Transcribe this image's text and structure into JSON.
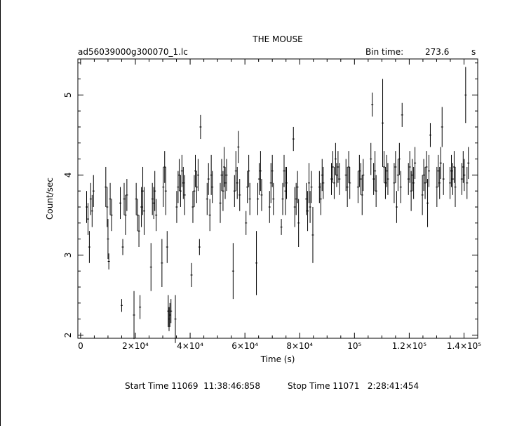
{
  "chart_data": {
    "type": "scatter",
    "title": "THE MOUSE",
    "file_label": "ad56039000g300070_1.lc",
    "bin_time_label": "Bin time:",
    "bin_time_value": "273.6",
    "bin_time_unit": "s",
    "xlabel": "Time (s)",
    "ylabel": "Count/sec",
    "xlim": [
      -1000,
      145000
    ],
    "ylim": [
      1.96,
      5.45
    ],
    "x_ticks": [
      {
        "value": 0,
        "label": "0"
      },
      {
        "value": 20000,
        "label": "2×10⁴"
      },
      {
        "value": 40000,
        "label": "4×10⁴"
      },
      {
        "value": 60000,
        "label": "6×10⁴"
      },
      {
        "value": 80000,
        "label": "8×10⁴"
      },
      {
        "value": 100000,
        "label": "10⁵"
      },
      {
        "value": 120000,
        "label": "1.2×10⁵"
      },
      {
        "value": 140000,
        "label": "1.4×10⁵"
      }
    ],
    "y_ticks": [
      {
        "value": 2,
        "label": "2"
      },
      {
        "value": 3,
        "label": "3"
      },
      {
        "value": 4,
        "label": "4"
      },
      {
        "value": 5,
        "label": "5"
      }
    ],
    "series": [
      {
        "points": [
          [
            2200,
            3.6,
            0.2
          ],
          [
            2700,
            3.45,
            0.2
          ],
          [
            3200,
            3.1,
            0.2
          ],
          [
            3700,
            3.7,
            0.2
          ],
          [
            4200,
            3.55,
            0.2
          ],
          [
            4700,
            3.8,
            0.2
          ],
          [
            9200,
            3.85,
            0.25
          ],
          [
            9700,
            3.6,
            0.25
          ],
          [
            10000,
            3.2,
            0.25
          ],
          [
            10300,
            2.92,
            0.1
          ],
          [
            10800,
            3.7,
            0.2
          ],
          [
            11300,
            3.5,
            0.2
          ],
          [
            14500,
            3.65,
            0.2
          ],
          [
            15000,
            2.37,
            0.08
          ],
          [
            15400,
            3.1,
            0.1
          ],
          [
            15900,
            3.7,
            0.2
          ],
          [
            16400,
            3.5,
            0.25
          ],
          [
            16900,
            3.75,
            0.2
          ],
          [
            19500,
            2.25,
            0.3
          ],
          [
            20300,
            3.7,
            0.2
          ],
          [
            20800,
            3.5,
            0.2
          ],
          [
            21300,
            3.3,
            0.2
          ],
          [
            21700,
            2.35,
            0.15
          ],
          [
            22200,
            3.6,
            0.25
          ],
          [
            22700,
            3.8,
            0.3
          ],
          [
            23200,
            3.55,
            0.3
          ],
          [
            25700,
            2.85,
            0.3
          ],
          [
            26200,
            3.7,
            0.2
          ],
          [
            26700,
            3.65,
            0.2
          ],
          [
            27100,
            3.8,
            0.25
          ],
          [
            27600,
            3.5,
            0.2
          ],
          [
            29700,
            2.9,
            0.3
          ],
          [
            30200,
            3.85,
            0.25
          ],
          [
            30700,
            4.1,
            0.2
          ],
          [
            31100,
            3.8,
            0.3
          ],
          [
            31600,
            3.1,
            0.2
          ],
          [
            32000,
            2.3,
            0.2
          ],
          [
            32300,
            2.2,
            0.15
          ],
          [
            32600,
            2.25,
            0.15
          ],
          [
            33000,
            2.3,
            0.15
          ],
          [
            34600,
            2.2,
            0.3
          ],
          [
            35100,
            3.6,
            0.2
          ],
          [
            35600,
            3.85,
            0.2
          ],
          [
            36000,
            4.0,
            0.2
          ],
          [
            36500,
            3.8,
            0.2
          ],
          [
            37000,
            4.05,
            0.2
          ],
          [
            37500,
            3.9,
            0.2
          ],
          [
            38000,
            3.75,
            0.25
          ],
          [
            40500,
            2.75,
            0.15
          ],
          [
            41000,
            3.6,
            0.2
          ],
          [
            41500,
            3.8,
            0.2
          ],
          [
            41900,
            4.05,
            0.2
          ],
          [
            42400,
            3.85,
            0.2
          ],
          [
            42900,
            4.0,
            0.2
          ],
          [
            43400,
            3.1,
            0.1
          ],
          [
            43800,
            4.6,
            0.15
          ],
          [
            46200,
            3.7,
            0.2
          ],
          [
            46700,
            3.95,
            0.2
          ],
          [
            47200,
            3.5,
            0.2
          ],
          [
            47700,
            4.0,
            0.25
          ],
          [
            48100,
            3.85,
            0.2
          ],
          [
            51000,
            3.65,
            0.25
          ],
          [
            51500,
            4.0,
            0.2
          ],
          [
            52000,
            3.8,
            0.25
          ],
          [
            52400,
            4.1,
            0.25
          ],
          [
            52800,
            3.9,
            0.2
          ],
          [
            53300,
            4.0,
            0.2
          ],
          [
            55700,
            2.8,
            0.35
          ],
          [
            56200,
            3.8,
            0.2
          ],
          [
            56700,
            4.05,
            0.25
          ],
          [
            57200,
            3.9,
            0.2
          ],
          [
            57600,
            4.35,
            0.2
          ],
          [
            58100,
            3.75,
            0.2
          ],
          [
            60400,
            3.4,
            0.15
          ],
          [
            60900,
            3.85,
            0.2
          ],
          [
            61400,
            4.05,
            0.2
          ],
          [
            61800,
            3.7,
            0.2
          ],
          [
            64200,
            2.9,
            0.4
          ],
          [
            64700,
            3.7,
            0.2
          ],
          [
            65200,
            3.95,
            0.2
          ],
          [
            65700,
            4.05,
            0.25
          ],
          [
            66100,
            3.75,
            0.2
          ],
          [
            69000,
            3.6,
            0.2
          ],
          [
            69500,
            3.9,
            0.25
          ],
          [
            70000,
            4.05,
            0.2
          ],
          [
            70400,
            3.7,
            0.2
          ],
          [
            73300,
            3.35,
            0.1
          ],
          [
            73800,
            3.7,
            0.2
          ],
          [
            74300,
            4.05,
            0.2
          ],
          [
            74800,
            3.8,
            0.3
          ],
          [
            75200,
            3.9,
            0.2
          ],
          [
            77700,
            4.45,
            0.15
          ],
          [
            78200,
            3.6,
            0.25
          ],
          [
            78700,
            3.7,
            0.2
          ],
          [
            79200,
            3.85,
            0.2
          ],
          [
            79600,
            3.4,
            0.3
          ],
          [
            82400,
            3.7,
            0.2
          ],
          [
            82900,
            3.55,
            0.25
          ],
          [
            83400,
            3.9,
            0.25
          ],
          [
            83800,
            3.6,
            0.2
          ],
          [
            84300,
            3.85,
            0.2
          ],
          [
            84800,
            3.25,
            0.35
          ],
          [
            87200,
            3.85,
            0.2
          ],
          [
            87700,
            3.7,
            0.2
          ],
          [
            88200,
            4.0,
            0.2
          ],
          [
            88600,
            3.9,
            0.2
          ],
          [
            91600,
            3.95,
            0.2
          ],
          [
            92100,
            4.1,
            0.2
          ],
          [
            92600,
            3.9,
            0.2
          ],
          [
            93100,
            4.2,
            0.2
          ],
          [
            93500,
            4.0,
            0.15
          ],
          [
            94000,
            4.1,
            0.2
          ],
          [
            94500,
            3.95,
            0.2
          ],
          [
            96900,
            4.0,
            0.2
          ],
          [
            97400,
            3.85,
            0.25
          ],
          [
            97900,
            4.1,
            0.2
          ],
          [
            98300,
            3.9,
            0.2
          ],
          [
            101300,
            3.85,
            0.2
          ],
          [
            101800,
            4.05,
            0.2
          ],
          [
            102300,
            3.95,
            0.2
          ],
          [
            102800,
            3.75,
            0.25
          ],
          [
            103200,
            4.0,
            0.2
          ],
          [
            106000,
            4.2,
            0.2
          ],
          [
            106500,
            4.88,
            0.15
          ],
          [
            107000,
            3.95,
            0.2
          ],
          [
            107500,
            4.05,
            0.25
          ],
          [
            107900,
            3.8,
            0.2
          ],
          [
            110300,
            4.65,
            0.55
          ],
          [
            110800,
            4.1,
            0.2
          ],
          [
            111300,
            3.9,
            0.2
          ],
          [
            111800,
            4.05,
            0.2
          ],
          [
            112200,
            3.95,
            0.2
          ],
          [
            114500,
            3.9,
            0.25
          ],
          [
            115000,
            4.1,
            0.2
          ],
          [
            115400,
            3.6,
            0.2
          ],
          [
            115900,
            4.0,
            0.2
          ],
          [
            116400,
            4.2,
            0.2
          ],
          [
            116900,
            3.85,
            0.2
          ],
          [
            117400,
            4.75,
            0.15
          ],
          [
            119700,
            3.95,
            0.2
          ],
          [
            120200,
            4.1,
            0.2
          ],
          [
            120700,
            3.8,
            0.25
          ],
          [
            121100,
            4.0,
            0.2
          ],
          [
            121600,
            3.9,
            0.2
          ],
          [
            122100,
            4.15,
            0.2
          ],
          [
            124800,
            3.75,
            0.25
          ],
          [
            125300,
            4.0,
            0.2
          ],
          [
            125800,
            3.9,
            0.2
          ],
          [
            126300,
            4.1,
            0.2
          ],
          [
            126700,
            3.65,
            0.3
          ],
          [
            127200,
            4.05,
            0.2
          ],
          [
            127700,
            4.5,
            0.15
          ],
          [
            130100,
            3.85,
            0.25
          ],
          [
            130600,
            4.05,
            0.2
          ],
          [
            131100,
            3.9,
            0.2
          ],
          [
            131500,
            4.15,
            0.2
          ],
          [
            132000,
            4.6,
            0.25
          ],
          [
            132500,
            3.95,
            0.2
          ],
          [
            134900,
            3.9,
            0.2
          ],
          [
            135400,
            4.05,
            0.2
          ],
          [
            135900,
            3.95,
            0.2
          ],
          [
            136400,
            4.1,
            0.2
          ],
          [
            136800,
            3.85,
            0.25
          ],
          [
            139200,
            3.95,
            0.2
          ],
          [
            139700,
            4.1,
            0.2
          ],
          [
            140100,
            4.0,
            0.2
          ],
          [
            140600,
            5.0,
            0.35
          ],
          [
            141100,
            3.9,
            0.2
          ],
          [
            141600,
            4.15,
            0.2
          ]
        ]
      }
    ]
  },
  "footer": {
    "start_label": "Start Time 11069  11:38:46:858",
    "stop_label": "Stop Time 11071   2:28:41:454"
  }
}
